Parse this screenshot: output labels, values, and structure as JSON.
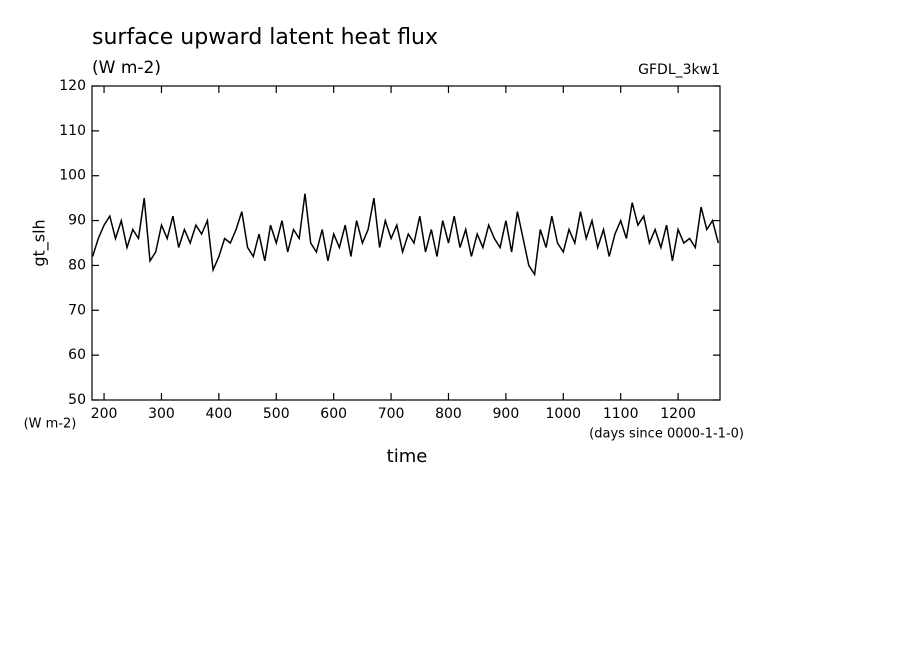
{
  "chart_data": {
    "type": "line",
    "title": "surface upward latent heat flux",
    "subtitle": "(W m-2)",
    "annotation": "GFDL_3kw1",
    "ylabel": "gt_slh",
    "yunits": "(W m-2)",
    "xunits": "(days since 0000-1-1-0)",
    "xlabel": "time",
    "xlim": [
      179,
      1273
    ],
    "ylim": [
      50,
      120
    ],
    "xticks": [
      200,
      300,
      400,
      500,
      600,
      700,
      800,
      900,
      1000,
      1100,
      1200
    ],
    "yticks": [
      50,
      60,
      70,
      80,
      90,
      100,
      110,
      120
    ],
    "x": [
      180,
      190,
      200,
      210,
      220,
      230,
      240,
      250,
      260,
      270,
      280,
      290,
      300,
      310,
      320,
      330,
      340,
      350,
      360,
      370,
      380,
      390,
      400,
      410,
      420,
      430,
      440,
      450,
      460,
      470,
      480,
      490,
      500,
      510,
      520,
      530,
      540,
      550,
      560,
      570,
      580,
      590,
      600,
      610,
      620,
      630,
      640,
      650,
      660,
      670,
      680,
      690,
      700,
      710,
      720,
      730,
      740,
      750,
      760,
      770,
      780,
      790,
      800,
      810,
      820,
      830,
      840,
      850,
      860,
      870,
      880,
      890,
      900,
      910,
      920,
      930,
      940,
      950,
      960,
      970,
      980,
      990,
      1000,
      1010,
      1020,
      1030,
      1040,
      1050,
      1060,
      1070,
      1080,
      1090,
      1100,
      1110,
      1120,
      1130,
      1140,
      1150,
      1160,
      1170,
      1180,
      1190,
      1200,
      1210,
      1220,
      1230,
      1240,
      1250,
      1260,
      1270
    ],
    "series": [
      {
        "name": "gt_slh",
        "color": "#000000",
        "values": [
          82,
          86,
          89,
          91,
          86,
          90,
          84,
          88,
          86,
          95,
          81,
          83,
          89,
          86,
          91,
          84,
          88,
          85,
          89,
          87,
          90,
          79,
          82,
          86,
          85,
          88,
          92,
          84,
          82,
          87,
          81,
          89,
          85,
          90,
          83,
          88,
          86,
          96,
          85,
          83,
          88,
          81,
          87,
          84,
          89,
          82,
          90,
          85,
          88,
          95,
          84,
          90,
          86,
          89,
          83,
          87,
          85,
          91,
          83,
          88,
          82,
          90,
          85,
          91,
          84,
          88,
          82,
          87,
          84,
          89,
          86,
          84,
          90,
          83,
          92,
          86,
          80,
          78,
          88,
          84,
          91,
          85,
          83,
          88,
          85,
          92,
          86,
          90,
          84,
          88,
          82,
          87,
          90,
          86,
          94,
          89,
          91,
          85,
          88,
          84,
          89,
          81,
          88,
          85,
          86,
          84,
          93,
          88,
          90,
          85
        ]
      }
    ]
  }
}
